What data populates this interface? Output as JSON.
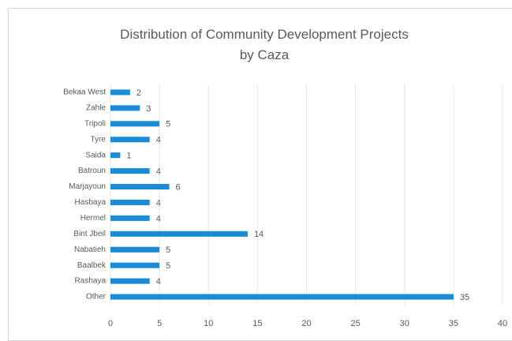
{
  "chart_data": {
    "type": "bar",
    "orientation": "horizontal",
    "title": "Distribution of Community Development Projects by Caza",
    "categories": [
      "Bekaa West",
      "Zahle",
      "Tripoli",
      "Tyre",
      "Saida",
      "Batroun",
      "Marjayoun",
      "Hasbaya",
      "Hermel",
      "Bint Jbeil",
      "Nabatieh",
      "Baalbek",
      "Rashaya",
      "Other"
    ],
    "values": [
      2,
      3,
      5,
      4,
      1,
      4,
      6,
      4,
      4,
      14,
      5,
      5,
      4,
      35
    ],
    "color": "#1a8bd6",
    "xlim": [
      0,
      40
    ],
    "xticks": [
      0,
      5,
      10,
      15,
      20,
      25,
      30,
      35,
      40
    ],
    "grid": true
  }
}
